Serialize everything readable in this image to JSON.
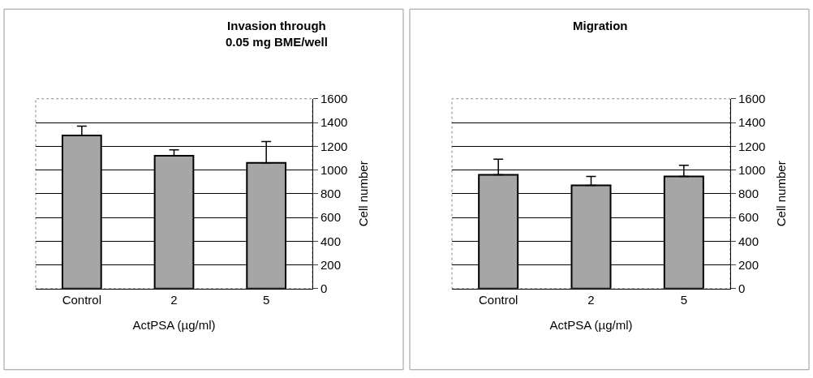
{
  "chart_data": [
    {
      "type": "bar",
      "title": "Invasion through\n0.05 mg BME/well",
      "xlabel": "ActPSA (µg/ml)",
      "ylabel": "Cell number",
      "categories": [
        "Control",
        "2",
        "5"
      ],
      "values": [
        1290,
        1120,
        1060
      ],
      "errors": [
        [
          1290,
          1370
        ],
        [
          1120,
          1170
        ],
        [
          1060,
          1240
        ]
      ],
      "color": "#a6a6a6",
      "ylim": [
        0,
        1600
      ],
      "yticks": [
        0,
        200,
        400,
        600,
        800,
        1000,
        1200,
        1400,
        1600
      ],
      "grid": "y"
    },
    {
      "type": "bar",
      "title": "Migration",
      "xlabel": "ActPSA (µg/ml)",
      "ylabel": "Cell number",
      "categories": [
        "Control",
        "2",
        "5"
      ],
      "values": [
        960,
        870,
        945
      ],
      "errors": [
        [
          960,
          1090
        ],
        [
          870,
          945
        ],
        [
          945,
          1040
        ]
      ],
      "color": "#a6a6a6",
      "ylim": [
        0,
        1600
      ],
      "yticks": [
        0,
        200,
        400,
        600,
        800,
        1000,
        1200,
        1400,
        1600
      ],
      "grid": "y"
    }
  ]
}
